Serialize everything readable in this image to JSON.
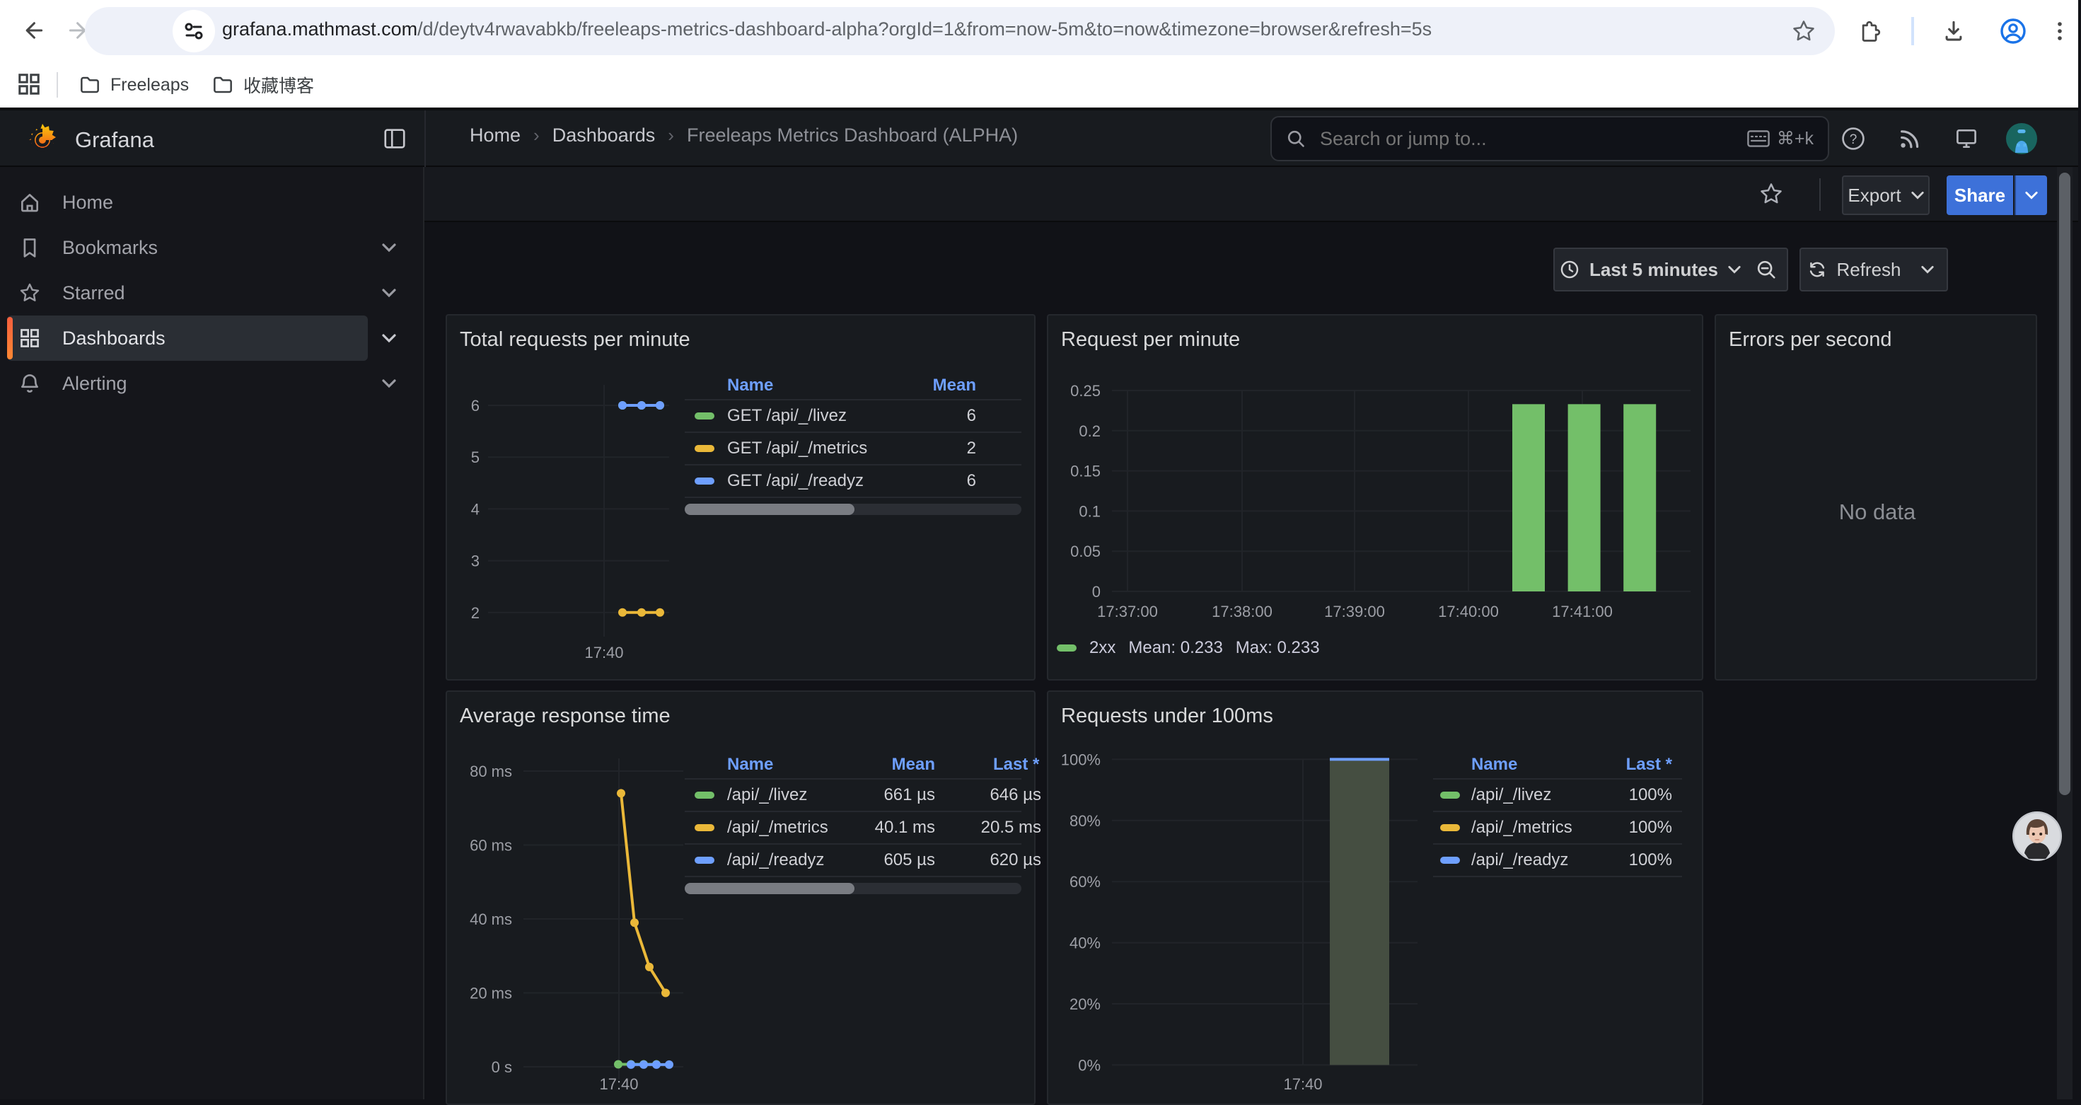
{
  "browser": {
    "url_domain": "grafana.mathmast.com",
    "url_path": "/d/deytv4rwavabkb/freeleaps-metrics-dashboard-alpha?orgId=1&from=now-5m&to=now&timezone=browser&refresh=5s",
    "bookmarks": [
      {
        "label": "Freeleaps"
      },
      {
        "label": "收藏博客"
      }
    ]
  },
  "nav": {
    "brand": "Grafana",
    "breadcrumbs": [
      "Home",
      "Dashboards",
      "Freeleaps Metrics Dashboard (ALPHA)"
    ],
    "breadcrumb_separator": "›",
    "search": {
      "placeholder": "Search or jump to...",
      "shortcut": "⌘+k"
    },
    "actions": {
      "export": "Export",
      "share": "Share"
    }
  },
  "sidebar": {
    "items": [
      {
        "label": "Home"
      },
      {
        "label": "Bookmarks"
      },
      {
        "label": "Starred"
      },
      {
        "label": "Dashboards",
        "active": true
      },
      {
        "label": "Alerting"
      }
    ]
  },
  "toolbar": {
    "time_range": "Last 5 minutes",
    "refresh": "Refresh"
  },
  "chart_data": [
    {
      "id": "total-requests-per-minute",
      "type": "line",
      "title": "Total requests per minute",
      "ylim": [
        1.8,
        6.35
      ],
      "y_ticks": [
        6,
        5,
        4,
        3,
        2
      ],
      "x_ticks": [
        "17:40"
      ],
      "legend_columns": [
        "Name",
        "Mean"
      ],
      "series": [
        {
          "name": "GET /api/_/livez",
          "color": "#73bf69",
          "values": [
            6,
            6,
            6
          ],
          "mean": "6"
        },
        {
          "name": "GET /api/_/metrics",
          "color": "#eab839",
          "values": [
            2,
            2,
            2
          ],
          "mean": "2"
        },
        {
          "name": "GET /api/_/readyz",
          "color": "#6e9fff",
          "values": [
            6,
            6,
            6
          ],
          "mean": "6"
        }
      ]
    },
    {
      "id": "request-per-minute",
      "type": "bar",
      "title": "Request per minute",
      "ylim": [
        0,
        0.25
      ],
      "y_ticks": [
        0.25,
        0.2,
        0.15,
        0.1,
        0.05,
        0
      ],
      "x_ticks": [
        "17:37:00",
        "17:38:00",
        "17:39:00",
        "17:40:00",
        "17:41:00"
      ],
      "series": [
        {
          "name": "2xx",
          "color": "#73bf69",
          "values": [
            0.233,
            0.233,
            0.233
          ],
          "mean": "0.233",
          "max": "0.233"
        }
      ],
      "legend_inline": {
        "mean_label": "Mean:",
        "max_label": "Max:"
      }
    },
    {
      "id": "errors-per-second",
      "type": "empty",
      "title": "Errors per second",
      "no_data": "No data"
    },
    {
      "id": "average-response-time",
      "type": "line",
      "title": "Average response time",
      "y_ticks": [
        "80 ms",
        "60 ms",
        "40 ms",
        "20 ms",
        "0 s"
      ],
      "ylim_ms": [
        0,
        80
      ],
      "x_ticks": [
        "17:40"
      ],
      "legend_columns": [
        "Name",
        "Mean",
        "Last *"
      ],
      "series": [
        {
          "name": "/api/_/livez",
          "color": "#73bf69",
          "values_ms": [
            0.66,
            0.66,
            0.66,
            0.66
          ],
          "mean": "661 µs",
          "last": "646 µs"
        },
        {
          "name": "/api/_/metrics",
          "color": "#eab839",
          "values_ms": [
            74,
            39,
            27,
            20
          ],
          "mean": "40.1 ms",
          "last": "20.5 ms"
        },
        {
          "name": "/api/_/readyz",
          "color": "#6e9fff",
          "values_ms": [
            0.6,
            0.6,
            0.6,
            0.6
          ],
          "mean": "605 µs",
          "last": "620 µs"
        }
      ]
    },
    {
      "id": "requests-under-100ms",
      "type": "bar",
      "title": "Requests under 100ms",
      "y_ticks": [
        "100%",
        "80%",
        "60%",
        "40%",
        "20%",
        "0%"
      ],
      "ylim_pct": [
        0,
        100
      ],
      "x_ticks": [
        "17:40"
      ],
      "legend_columns": [
        "Name",
        "Last *"
      ],
      "bar_value_pct": 100,
      "series": [
        {
          "name": "/api/_/livez",
          "color": "#73bf69",
          "last": "100%"
        },
        {
          "name": "/api/_/metrics",
          "color": "#eab839",
          "last": "100%"
        },
        {
          "name": "/api/_/readyz",
          "color": "#6e9fff",
          "last": "100%"
        }
      ]
    }
  ]
}
